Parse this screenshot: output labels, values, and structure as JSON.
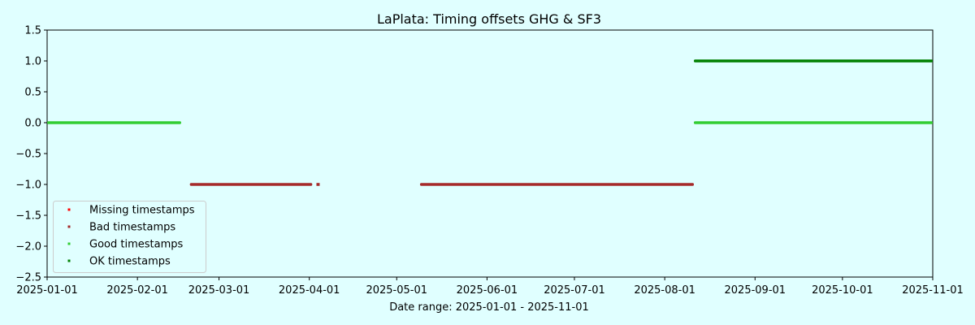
{
  "chart_data": {
    "type": "scatter",
    "title": "LaPlata: Timing offsets GHG & SF3",
    "xlabel": "Date range: 2025-01-01 - 2025-11-01",
    "ylabel": "",
    "xlim": [
      "2025-01-01",
      "2025-11-01"
    ],
    "ylim": [
      -2.5,
      1.5
    ],
    "x_ticks": [
      "2025-01-01",
      "2025-02-01",
      "2025-03-01",
      "2025-04-01",
      "2025-05-01",
      "2025-06-01",
      "2025-07-01",
      "2025-08-01",
      "2025-09-01",
      "2025-10-01",
      "2025-11-01"
    ],
    "y_ticks": [
      "1.5",
      "1.0",
      "0.5",
      "0.0",
      "−0.5",
      "−1.0",
      "−1.5",
      "−2.0",
      "−2.5"
    ],
    "y_tick_values": [
      1.5,
      1.0,
      0.5,
      0.0,
      -0.5,
      -1.0,
      -1.5,
      -2.0,
      -2.5
    ],
    "grid": false,
    "legend_position": "lower-left",
    "series": [
      {
        "name": "Missing timestamps",
        "color": "#ff0000",
        "segments": []
      },
      {
        "name": "Bad timestamps",
        "color": "#a52a2a",
        "segments": [
          {
            "start": "2025-02-19",
            "end": "2025-04-02",
            "y": -1.0
          },
          {
            "start": "2025-04-04",
            "end": "2025-04-04",
            "y": -1.0
          },
          {
            "start": "2025-05-09",
            "end": "2025-08-11",
            "y": -1.0
          }
        ]
      },
      {
        "name": "Good timestamps",
        "color": "#32cd32",
        "segments": [
          {
            "start": "2025-01-01",
            "end": "2025-02-16",
            "y": 0.0
          },
          {
            "start": "2025-08-11",
            "end": "2025-11-01",
            "y": 0.0
          }
        ]
      },
      {
        "name": "OK timestamps",
        "color": "#008000",
        "segments": [
          {
            "start": "2025-08-11",
            "end": "2025-11-01",
            "y": 1.0
          }
        ]
      }
    ]
  }
}
